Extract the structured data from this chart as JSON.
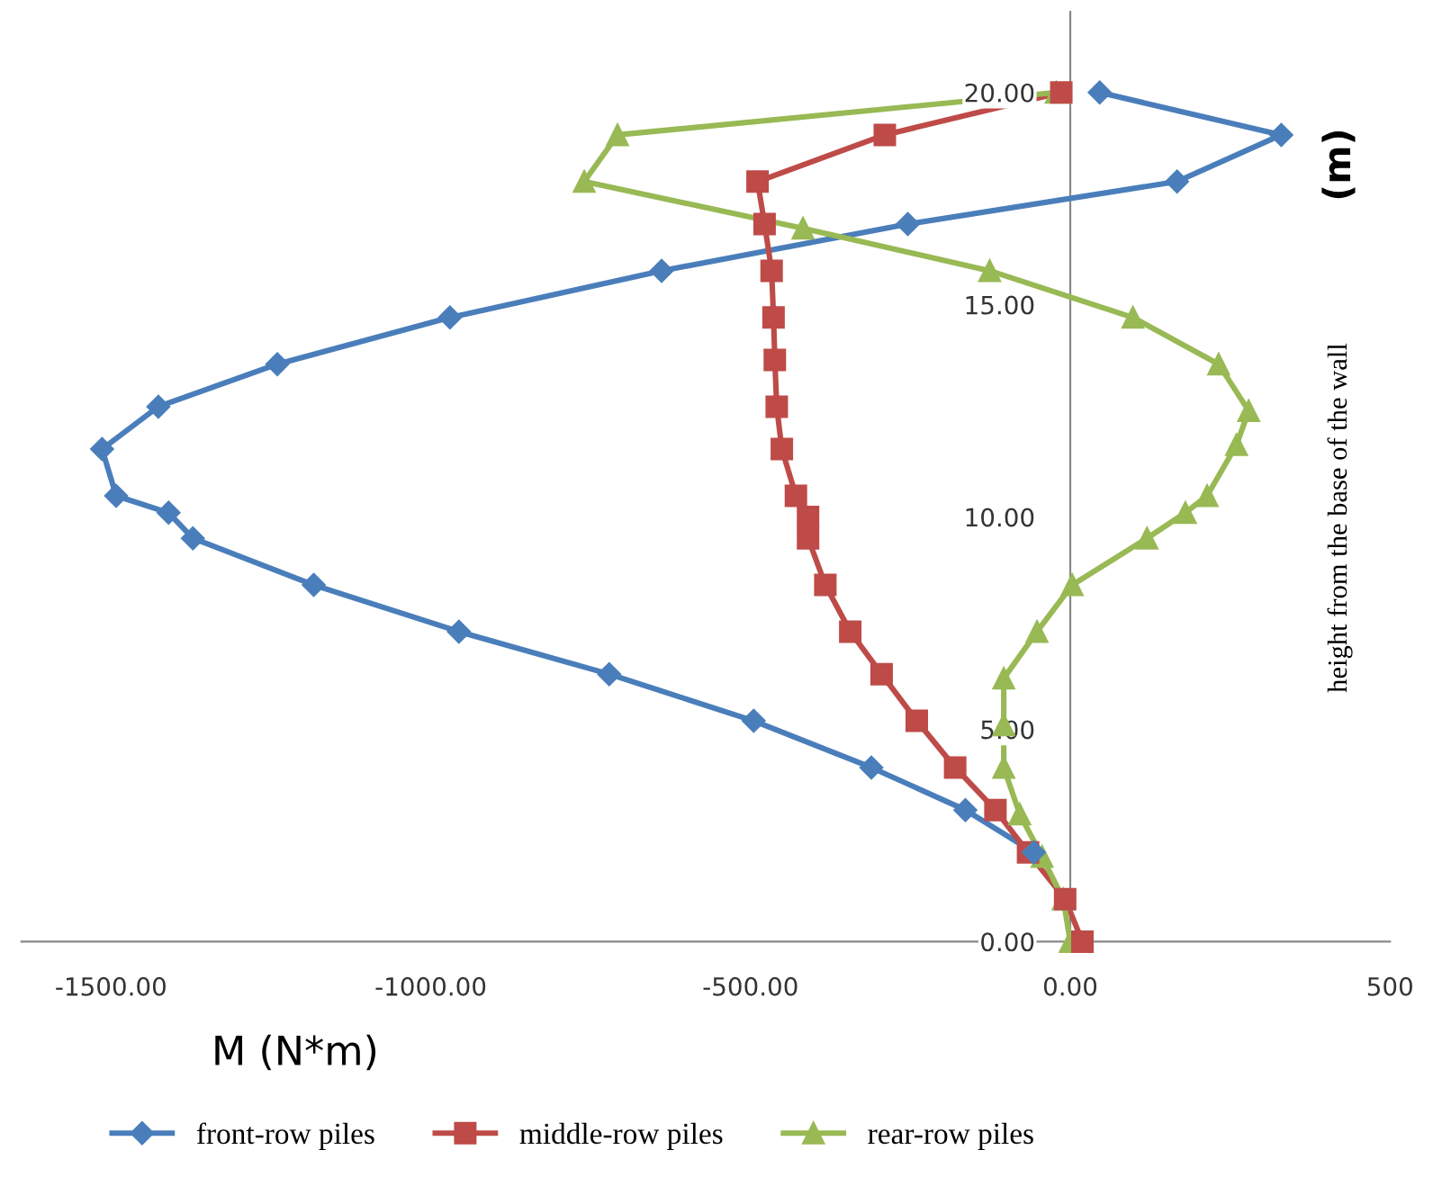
{
  "chart_data": {
    "type": "line",
    "xlabel": "M (N*m)",
    "ylabel": "height from the base of the wall",
    "annotations": [
      "(m)"
    ],
    "xlim": [
      -1640,
      500
    ],
    "xticks": [
      {
        "value": -1500,
        "label": "-1500.00"
      },
      {
        "value": -1000,
        "label": "-1000.00"
      },
      {
        "value": -500,
        "label": "-500.00"
      },
      {
        "value": 0,
        "label": "0.00"
      },
      500
    ],
    "ylim": [
      0,
      21.9
    ],
    "yticks": [
      {
        "value": 0,
        "label": "0.00"
      },
      {
        "value": 5,
        "label": "5.00"
      },
      {
        "value": 10,
        "label": "10.00"
      },
      {
        "value": 15,
        "label": "15.00"
      },
      {
        "value": 20,
        "label": "20.00"
      }
    ],
    "grid": false,
    "legend": "bottom",
    "line_style": "solid",
    "series": [
      {
        "name": "front-row piles",
        "color": "#4a7ebb",
        "marker": "diamond",
        "x": [
          46,
          330,
          167,
          -254,
          -639,
          -970,
          -1240,
          -1426,
          -1514,
          -1492,
          -1410,
          -1372,
          -1183,
          -956,
          -721,
          -495,
          -311,
          -164,
          -57
        ],
        "values": [
          20.0,
          19.0,
          17.9,
          16.9,
          15.8,
          14.7,
          13.6,
          12.6,
          11.6,
          10.5,
          10.1,
          9.5,
          8.4,
          7.3,
          6.3,
          5.2,
          4.1,
          3.1,
          2.1
        ]
      },
      {
        "name": "middle-row piles",
        "color": "#be4b48",
        "marker": "square",
        "x": [
          -14,
          -290,
          -489,
          -478,
          -467,
          -464,
          -462,
          -459,
          -451,
          -429,
          -410,
          -410,
          -383,
          -344,
          -295,
          -240,
          -180,
          -117,
          -66,
          -8,
          19
        ],
        "values": [
          20.0,
          19.0,
          17.9,
          16.9,
          15.8,
          14.7,
          13.7,
          12.6,
          11.6,
          10.5,
          10.0,
          9.5,
          8.4,
          7.3,
          6.3,
          5.2,
          4.1,
          3.1,
          2.1,
          1.0,
          0
        ]
      },
      {
        "name": "rear-row piles",
        "color": "#98b954",
        "marker": "triangle",
        "x": [
          -22,
          -708,
          -760,
          -418,
          -126,
          98,
          232,
          279,
          260,
          214,
          180,
          120,
          3,
          -52,
          -104,
          -104,
          -104,
          -79,
          -44,
          -11,
          0
        ],
        "values": [
          20.0,
          19.0,
          17.9,
          16.8,
          15.8,
          14.7,
          13.6,
          12.5,
          11.7,
          10.5,
          10.1,
          9.5,
          8.4,
          7.3,
          6.2,
          5.1,
          4.1,
          3.0,
          2.0,
          1.0,
          0
        ]
      }
    ]
  }
}
